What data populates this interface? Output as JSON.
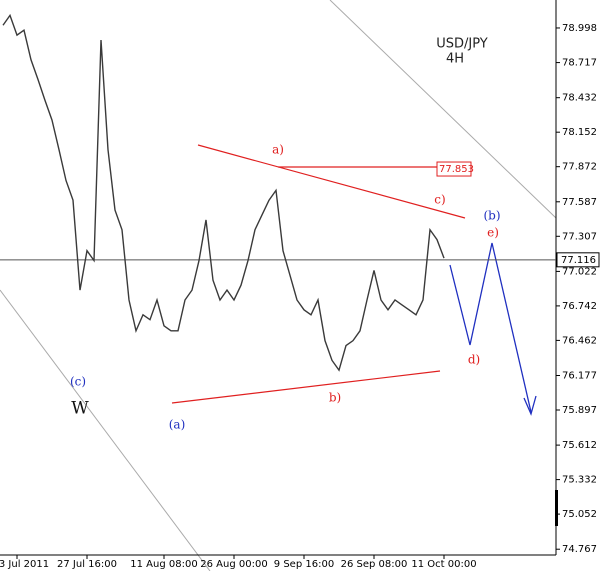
{
  "chart_data": {
    "type": "line",
    "title": "USD/JPY",
    "subtitle": "4H",
    "categories": [
      null,
      null,
      "3 Jul 2011",
      null,
      null,
      null,
      null,
      null,
      null,
      null,
      null,
      null,
      "27 Jul 16:00",
      null,
      null,
      null,
      null,
      null,
      null,
      null,
      null,
      null,
      null,
      "11 Aug 08:00",
      null,
      null,
      null,
      null,
      null,
      null,
      null,
      null,
      null,
      "26 Aug 00:00",
      null,
      null,
      null,
      null,
      null,
      null,
      null,
      null,
      null,
      "9 Sep 16:00",
      null,
      null,
      null,
      null,
      null,
      null,
      null,
      null,
      null,
      "26 Sep 08:00",
      null,
      null,
      null,
      null,
      null,
      null,
      null,
      null,
      null,
      "11 Oct 00:00"
    ],
    "series": [
      {
        "name": "USD/JPY",
        "color": "#3a3a3a",
        "values": [
          79.02,
          79.1,
          78.94,
          78.98,
          78.74,
          78.58,
          78.41,
          78.25,
          78.01,
          77.76,
          77.6,
          76.87,
          77.19,
          77.11,
          78.9,
          78.01,
          77.52,
          77.36,
          76.79,
          76.54,
          76.67,
          76.63,
          76.79,
          76.58,
          76.54,
          76.54,
          76.79,
          76.87,
          77.11,
          77.44,
          76.95,
          76.79,
          76.87,
          76.79,
          76.91,
          77.11,
          77.36,
          77.48,
          77.6,
          77.68,
          77.19,
          76.99,
          76.79,
          76.71,
          76.67,
          76.79,
          76.46,
          76.3,
          76.22,
          76.42,
          76.46,
          76.54,
          76.79,
          77.03,
          76.79,
          76.71,
          76.79,
          76.75,
          76.71,
          76.67,
          76.79,
          77.36,
          77.28,
          77.13
        ]
      }
    ],
    "ylim": [
      74.72,
      79.225
    ],
    "yticks": [
      78.998,
      78.717,
      78.432,
      78.152,
      77.872,
      77.587,
      77.307,
      77.022,
      76.742,
      76.462,
      76.177,
      75.897,
      75.612,
      75.332,
      75.052,
      74.767
    ],
    "current_price": 77.116,
    "marked_price": 77.853,
    "annotations": [
      "a)",
      "b)",
      "c)",
      "d)",
      "e)",
      "(a)",
      "(b)",
      "(c)",
      "W"
    ]
  }
}
